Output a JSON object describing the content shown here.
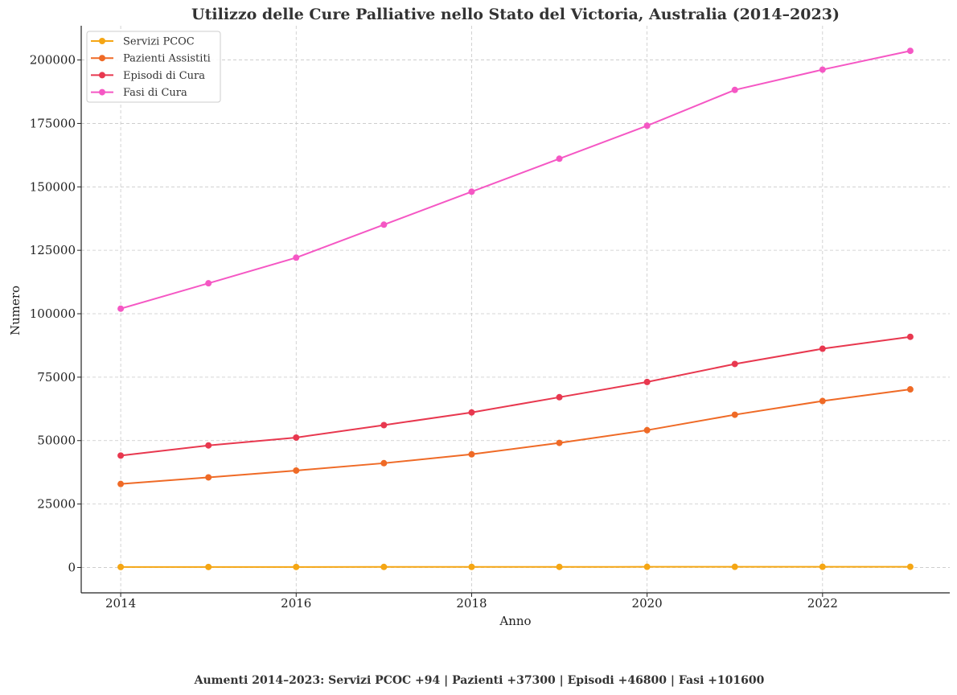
{
  "chart_data": {
    "type": "line",
    "title": "Utilizzo delle Cure Palliative nello Stato del Victoria, Australia (2014–2023)",
    "xlabel": "Anno",
    "ylabel": "Numero",
    "x": [
      2014,
      2015,
      2016,
      2017,
      2018,
      2019,
      2020,
      2021,
      2022,
      2023
    ],
    "xlim": [
      2013.55,
      2023.45
    ],
    "ylim": [
      -10000,
      213500
    ],
    "xticks": [
      "2014",
      "2016",
      "2018",
      "2020",
      "2022"
    ],
    "yticks": [
      "0",
      "25000",
      "50000",
      "75000",
      "100000",
      "125000",
      "150000",
      "175000",
      "200000"
    ],
    "grid": true,
    "legend_position": "top-left",
    "series": [
      {
        "name": "Servizi PCOC",
        "color": "#f5a614",
        "values": [
          186,
          192,
          198,
          210,
          220,
          235,
          245,
          255,
          268,
          280
        ]
      },
      {
        "name": "Pazienti Assistiti",
        "color": "#ef6a26",
        "values": [
          32900,
          35500,
          38200,
          41100,
          44600,
          49100,
          54100,
          60200,
          65600,
          70200
        ]
      },
      {
        "name": "Episodi di Cura",
        "color": "#e8384f",
        "values": [
          44100,
          48100,
          51200,
          56100,
          61100,
          67100,
          73100,
          80200,
          86200,
          90900
        ]
      },
      {
        "name": "Fasi di Cura",
        "color": "#f557c4",
        "values": [
          102000,
          112000,
          122100,
          135100,
          148100,
          161100,
          174100,
          188200,
          196200,
          203600
        ]
      }
    ],
    "footnote": "Aumenti 2014–2023: Servizi PCOC +94 | Pazienti +37300 | Episodi +46800 | Fasi +101600"
  }
}
